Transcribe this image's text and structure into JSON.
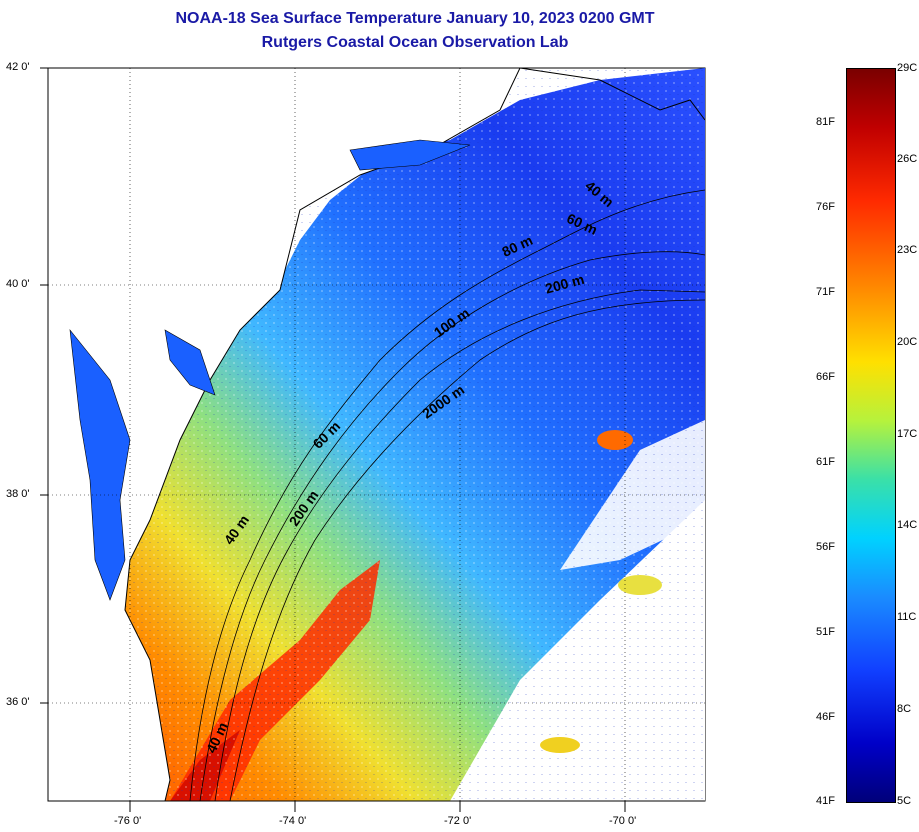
{
  "title": {
    "line1": "NOAA-18 Sea Surface Temperature January 10, 2023 0200 GMT",
    "line2": "Rutgers Coastal Ocean Observation Lab"
  },
  "map": {
    "lat_labels": [
      "42 0'",
      "40 0'",
      "38 0'",
      "36 0'"
    ],
    "lon_labels": [
      "-76 0'",
      "-74 0'",
      "-72 0'",
      "-70 0'"
    ],
    "isobath_labels": [
      "40 m",
      "60 m",
      "80 m",
      "200 m",
      "100 m",
      "2000 m",
      "60 m",
      "40 m",
      "200 m",
      "40 m"
    ]
  },
  "colorbar": {
    "celsius": [
      "29C",
      "26C",
      "23C",
      "20C",
      "17C",
      "14C",
      "11C",
      "8C",
      "5C"
    ],
    "fahrenheit": [
      "81F",
      "76F",
      "71F",
      "66F",
      "61F",
      "56F",
      "51F",
      "46F",
      "41F"
    ]
  }
}
